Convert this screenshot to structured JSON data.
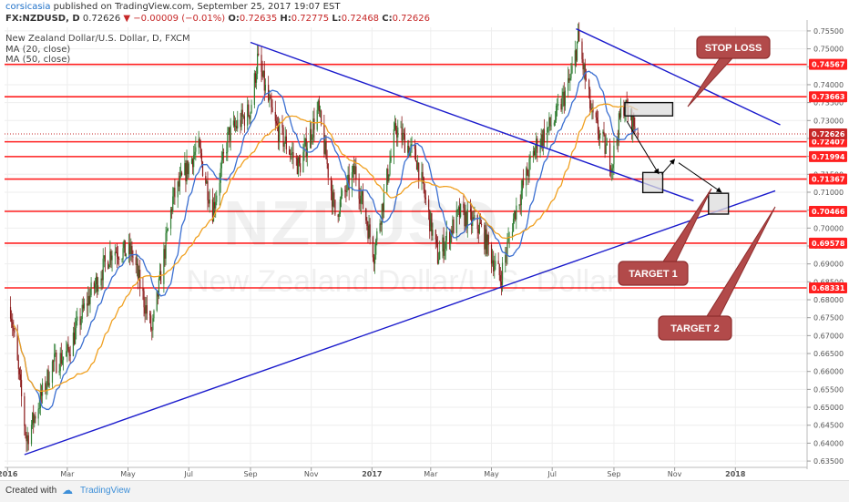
{
  "header": {
    "author": "corsicasia",
    "published": "published on TradingView.com, September 25, 2017 19:07 EST",
    "symbol": "FX:NZDUSD, D",
    "last": "0.72626",
    "change": "−0.00009 (−0.01%)",
    "o_label": "O:",
    "o": "0.72635",
    "h_label": "H:",
    "h": "0.72775",
    "l_label": "L:",
    "l": "0.72468",
    "c_label": "C:",
    "c": "0.72626",
    "title": "New Zealand Dollar/U.S. Dollar, D, FXCM",
    "ma20": "MA (20, close)",
    "ma50": "MA (50, close)"
  },
  "watermark": {
    "ticker": "NZDUSD",
    "name": "New Zealand Dollar/U.S. Dollar"
  },
  "footer": {
    "created_with": "Created with",
    "brand": "TradingView"
  },
  "colors": {
    "up": "#2e7d32",
    "down": "#8b1a1a",
    "ma20": "#3b6fd1",
    "ma50": "#f0a020",
    "level": "#ff2020",
    "trend": "#1a1acc",
    "callout": "#b24a4a",
    "callout_border": "#8e2d2d"
  },
  "chart_data": {
    "type": "candlestick",
    "x_ticks": [
      "2016",
      "Mar",
      "May",
      "Jul",
      "Sep",
      "Nov",
      "2017",
      "Mar",
      "May",
      "Jul",
      "Sep",
      "Nov",
      "2018"
    ],
    "y_ticks": [
      "0.75500",
      "0.75000",
      "0.74500",
      "0.74000",
      "0.73500",
      "0.73000",
      "0.72500",
      "0.72000",
      "0.71500",
      "0.71000",
      "0.70500",
      "0.70000",
      "0.69500",
      "0.69000",
      "0.68500",
      "0.68000",
      "0.67500",
      "0.67000",
      "0.66500",
      "0.66000",
      "0.65500",
      "0.65000",
      "0.64500",
      "0.64000",
      "0.63500"
    ],
    "ylim": [
      0.634,
      0.756
    ],
    "levels": [
      "0.74567",
      "0.73663",
      "0.72407",
      "0.71994",
      "0.71367",
      "0.70466",
      "0.69578",
      "0.68331"
    ],
    "current_price": "0.72626",
    "path_points": [
      [
        "2016-01-04",
        0.678
      ],
      [
        "2016-01-20",
        0.641
      ],
      [
        "2016-02-15",
        0.662
      ],
      [
        "2016-03-01",
        0.665
      ],
      [
        "2016-03-20",
        0.679
      ],
      [
        "2016-04-15",
        0.694
      ],
      [
        "2016-05-05",
        0.693
      ],
      [
        "2016-05-25",
        0.671
      ],
      [
        "2016-06-15",
        0.708
      ],
      [
        "2016-07-10",
        0.723
      ],
      [
        "2016-07-25",
        0.705
      ],
      [
        "2016-08-10",
        0.726
      ],
      [
        "2016-09-01",
        0.733
      ],
      [
        "2016-09-08",
        0.747
      ],
      [
        "2016-09-25",
        0.729
      ],
      [
        "2016-10-20",
        0.717
      ],
      [
        "2016-11-08",
        0.733
      ],
      [
        "2016-11-25",
        0.704
      ],
      [
        "2016-12-15",
        0.716
      ],
      [
        "2017-01-03",
        0.693
      ],
      [
        "2017-01-25",
        0.728
      ],
      [
        "2017-02-15",
        0.719
      ],
      [
        "2017-03-08",
        0.692
      ],
      [
        "2017-03-30",
        0.704
      ],
      [
        "2017-04-20",
        0.7
      ],
      [
        "2017-05-10",
        0.686
      ],
      [
        "2017-05-25",
        0.705
      ],
      [
        "2017-06-15",
        0.723
      ],
      [
        "2017-07-05",
        0.731
      ],
      [
        "2017-07-20",
        0.742
      ],
      [
        "2017-07-27",
        0.753
      ],
      [
        "2017-08-10",
        0.731
      ],
      [
        "2017-08-30",
        0.718
      ],
      [
        "2017-09-10",
        0.735
      ],
      [
        "2017-09-25",
        0.7263
      ]
    ],
    "trendlines": [
      {
        "name": "descending",
        "points": [
          [
            "2016-09-01",
            0.7518
          ],
          [
            "2017-11-20",
            0.7076
          ]
        ]
      },
      {
        "name": "ascending",
        "points": [
          [
            "2016-01-18",
            0.6368
          ],
          [
            "2018-02-10",
            0.7104
          ]
        ]
      },
      {
        "name": "upper",
        "points": [
          [
            "2017-07-25",
            0.7556
          ],
          [
            "2018-02-15",
            0.7288
          ]
        ]
      }
    ],
    "boxes": [
      {
        "name": "stop-box",
        "x": [
          "2017-09-12",
          "2017-10-30"
        ],
        "y": [
          0.7313,
          0.735
        ]
      },
      {
        "name": "target1-box",
        "x": [
          "2017-09-30",
          "2017-10-20"
        ],
        "y": [
          0.7099,
          0.7155
        ]
      },
      {
        "name": "target2-box",
        "x": [
          "2017-12-05",
          "2017-12-25"
        ],
        "y": [
          0.7039,
          0.7097
        ]
      }
    ],
    "arrows": [
      {
        "from": [
          "2017-09-14",
          0.7298
        ],
        "to": [
          "2017-10-16",
          0.7151
        ]
      },
      {
        "from": [
          "2017-10-19",
          0.715
        ],
        "to": [
          "2017-11-01",
          0.7192
        ]
      },
      {
        "from": [
          "2017-11-05",
          0.7182
        ],
        "to": [
          "2017-12-18",
          0.71
        ]
      }
    ],
    "callouts": [
      {
        "label": "STOP LOSS"
      },
      {
        "label": "TARGET 1"
      },
      {
        "label": "TARGET 2"
      }
    ]
  }
}
